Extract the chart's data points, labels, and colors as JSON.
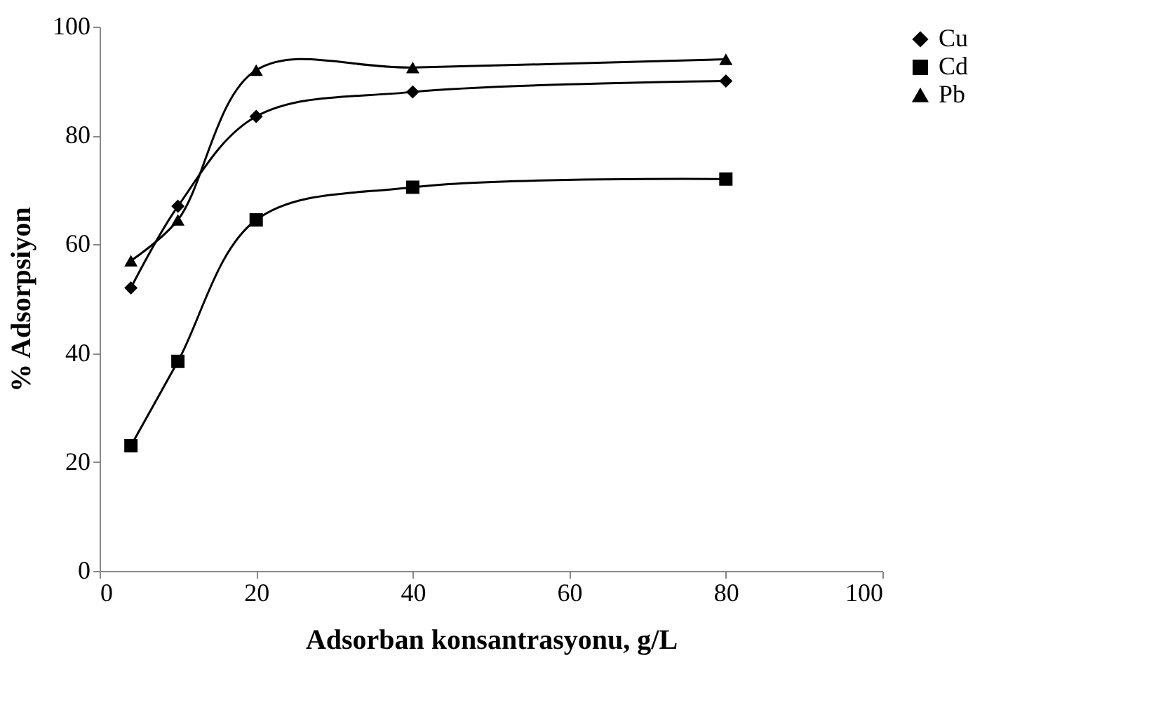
{
  "chart_data": {
    "type": "line",
    "xlabel": "Adsorban konsantrasyonu, g/L",
    "ylabel": "% Adsorpsiyon",
    "x": [
      4,
      10,
      20,
      40,
      80
    ],
    "series": [
      {
        "name": "Cu",
        "color": "#000000",
        "marker": "diamond",
        "values": [
          52,
          67,
          83.5,
          88,
          90
        ]
      },
      {
        "name": "Cd",
        "color": "#000000",
        "marker": "square",
        "values": [
          23,
          38.5,
          64.5,
          70.5,
          72
        ]
      },
      {
        "name": "Pb",
        "color": "#000000",
        "marker": "triangle",
        "values": [
          57,
          64.5,
          92,
          92.5,
          94
        ]
      }
    ],
    "xlim": [
      0,
      100
    ],
    "xticks": [
      0,
      20,
      40,
      60,
      80,
      100
    ],
    "ylim": [
      0,
      100
    ],
    "yticks": [
      0,
      20,
      40,
      60,
      80,
      100
    ],
    "grid": false,
    "legend": "right",
    "line_style": "solid"
  }
}
